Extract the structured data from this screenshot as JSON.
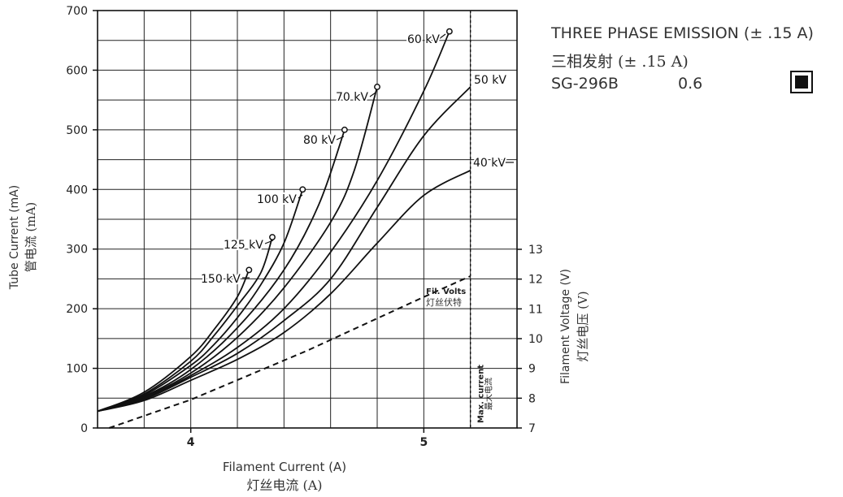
{
  "chart_data": {
    "type": "line",
    "x_axis": {
      "label_en": "Filament Current (A)",
      "label_zh": "灯丝电流 (A)",
      "range": [
        3.6,
        5.4
      ],
      "ticks": [
        {
          "value": 4,
          "label": "4"
        },
        {
          "value": 5,
          "label": "5"
        }
      ]
    },
    "y_axis_left": {
      "label_en": "Tube Current (mA)",
      "label_zh": "管电流 (mA)",
      "range": [
        0,
        700
      ],
      "ticks": [
        0,
        100,
        200,
        300,
        400,
        500,
        600,
        700
      ]
    },
    "y_axis_right": {
      "label_en": "Filament Voltage (V)",
      "label_zh": "灯丝电压 (V)",
      "ticks": [
        7,
        8,
        9,
        10,
        11,
        12,
        13
      ]
    },
    "grid": true,
    "max_current": {
      "x": 5.2,
      "label_en": "Max. current",
      "label_zh": "最大电流"
    },
    "filament_volts": {
      "label_en": "Fil. Volts",
      "label_zh": "灯丝伏特",
      "points": [
        [
          3.65,
          7.0
        ],
        [
          4.0,
          7.95
        ],
        [
          4.5,
          9.6
        ],
        [
          5.0,
          11.4
        ],
        [
          5.2,
          12.1
        ]
      ]
    },
    "series": [
      {
        "name": "150 kV",
        "end_marker": true,
        "points": [
          [
            3.6,
            28
          ],
          [
            3.8,
            60
          ],
          [
            4.0,
            120
          ],
          [
            4.1,
            165
          ],
          [
            4.2,
            220
          ],
          [
            4.25,
            265
          ]
        ]
      },
      {
        "name": "125 kV",
        "end_marker": true,
        "points": [
          [
            3.6,
            28
          ],
          [
            3.8,
            57
          ],
          [
            4.0,
            112
          ],
          [
            4.1,
            155
          ],
          [
            4.2,
            205
          ],
          [
            4.3,
            260
          ],
          [
            4.35,
            320
          ]
        ]
      },
      {
        "name": "100 kV",
        "end_marker": true,
        "points": [
          [
            3.6,
            28
          ],
          [
            3.8,
            55
          ],
          [
            4.0,
            105
          ],
          [
            4.1,
            140
          ],
          [
            4.2,
            185
          ],
          [
            4.3,
            240
          ],
          [
            4.4,
            310
          ],
          [
            4.48,
            400
          ]
        ]
      },
      {
        "name": "80 kV",
        "end_marker": true,
        "points": [
          [
            3.6,
            28
          ],
          [
            3.8,
            53
          ],
          [
            4.0,
            98
          ],
          [
            4.2,
            168
          ],
          [
            4.4,
            265
          ],
          [
            4.55,
            375
          ],
          [
            4.66,
            500
          ]
        ]
      },
      {
        "name": "70 kV",
        "end_marker": true,
        "points": [
          [
            3.6,
            28
          ],
          [
            3.8,
            52
          ],
          [
            4.0,
            92
          ],
          [
            4.2,
            152
          ],
          [
            4.4,
            235
          ],
          [
            4.6,
            345
          ],
          [
            4.7,
            430
          ],
          [
            4.8,
            572
          ]
        ]
      },
      {
        "name": "60 kV",
        "end_marker": true,
        "points": [
          [
            3.6,
            28
          ],
          [
            3.8,
            50
          ],
          [
            4.0,
            88
          ],
          [
            4.2,
            135
          ],
          [
            4.4,
            200
          ],
          [
            4.6,
            295
          ],
          [
            4.8,
            415
          ],
          [
            5.0,
            565
          ],
          [
            5.11,
            665
          ]
        ]
      },
      {
        "name": "50 kV",
        "end_marker": false,
        "points": [
          [
            3.6,
            28
          ],
          [
            3.8,
            48
          ],
          [
            4.0,
            85
          ],
          [
            4.2,
            125
          ],
          [
            4.4,
            180
          ],
          [
            4.6,
            250
          ],
          [
            4.8,
            370
          ],
          [
            5.0,
            490
          ],
          [
            5.2,
            572
          ]
        ]
      },
      {
        "name": "40 kV",
        "end_marker": false,
        "points": [
          [
            3.6,
            28
          ],
          [
            3.8,
            46
          ],
          [
            4.0,
            80
          ],
          [
            4.2,
            115
          ],
          [
            4.4,
            160
          ],
          [
            4.6,
            225
          ],
          [
            4.8,
            310
          ],
          [
            5.0,
            390
          ],
          [
            5.2,
            432
          ]
        ]
      }
    ]
  },
  "info": {
    "title_en": "THREE PHASE EMISSION (± .15 A)",
    "title_zh": "三相发射 (± .15 A)",
    "model": "SG-296B",
    "focal_spot": "0.6",
    "swatch_color": "#111111"
  }
}
